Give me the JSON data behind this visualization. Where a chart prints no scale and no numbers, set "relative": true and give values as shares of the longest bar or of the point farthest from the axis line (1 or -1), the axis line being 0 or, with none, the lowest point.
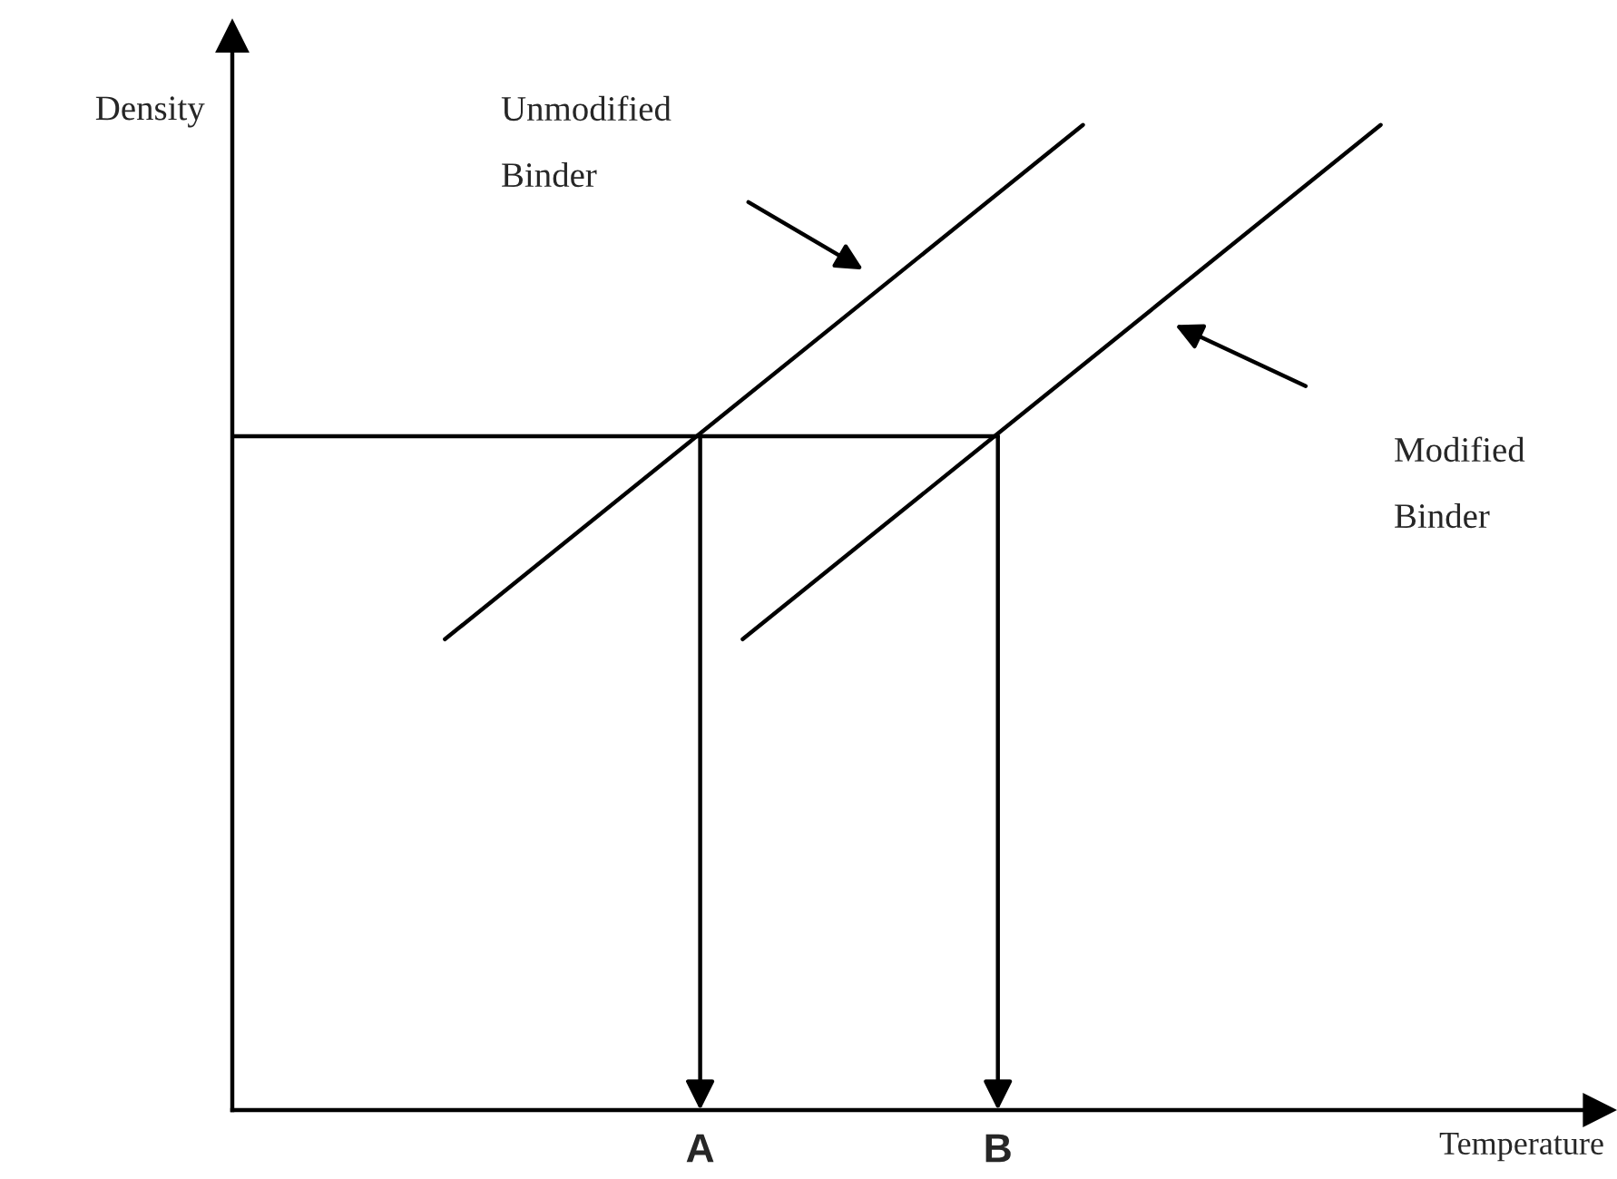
{
  "chart_data": {
    "type": "line",
    "relative": true,
    "xlabel": "Temperature",
    "ylabel": "Density",
    "categories": [
      null,
      null,
      null,
      null,
      null,
      null,
      null,
      null,
      null,
      null,
      null,
      "A",
      null,
      null,
      null,
      null,
      null,
      null,
      "B",
      null,
      null,
      null,
      null,
      null,
      null,
      null,
      null,
      null,
      null,
      null,
      null,
      null,
      null
    ],
    "series": [
      {
        "color": "#000000",
        "values": [
          null,
          null,
          null,
          null,
          null,
          0.478,
          null,
          null,
          null,
          null,
          null,
          null,
          null,
          null,
          null,
          null,
          null,
          null,
          null,
          null,
          1,
          null,
          null,
          null,
          null,
          null,
          null,
          null,
          null,
          null,
          null,
          null,
          null
        ]
      },
      {
        "color": "#000000",
        "values": [
          null,
          null,
          null,
          null,
          null,
          null,
          null,
          null,
          null,
          null,
          null,
          null,
          0.478,
          null,
          null,
          null,
          null,
          null,
          null,
          null,
          null,
          null,
          null,
          null,
          null,
          null,
          null,
          1,
          null,
          null,
          null,
          null,
          null
        ]
      },
      {
        "color": "#000000",
        "values": [
          0.684,
          null,
          null,
          null,
          null,
          null,
          null,
          null,
          null,
          null,
          null,
          0.684,
          null,
          null,
          null,
          null,
          null,
          null,
          0.684,
          null,
          null,
          null,
          null,
          null,
          null,
          null,
          null,
          null,
          null,
          null,
          null,
          null,
          null
        ]
      }
    ],
    "annotations": [
      "Unmodified\nBinder",
      "Modified\nBinder"
    ],
    "grid": false,
    "legend": false,
    "line_style": "solid",
    "marker": "none"
  }
}
